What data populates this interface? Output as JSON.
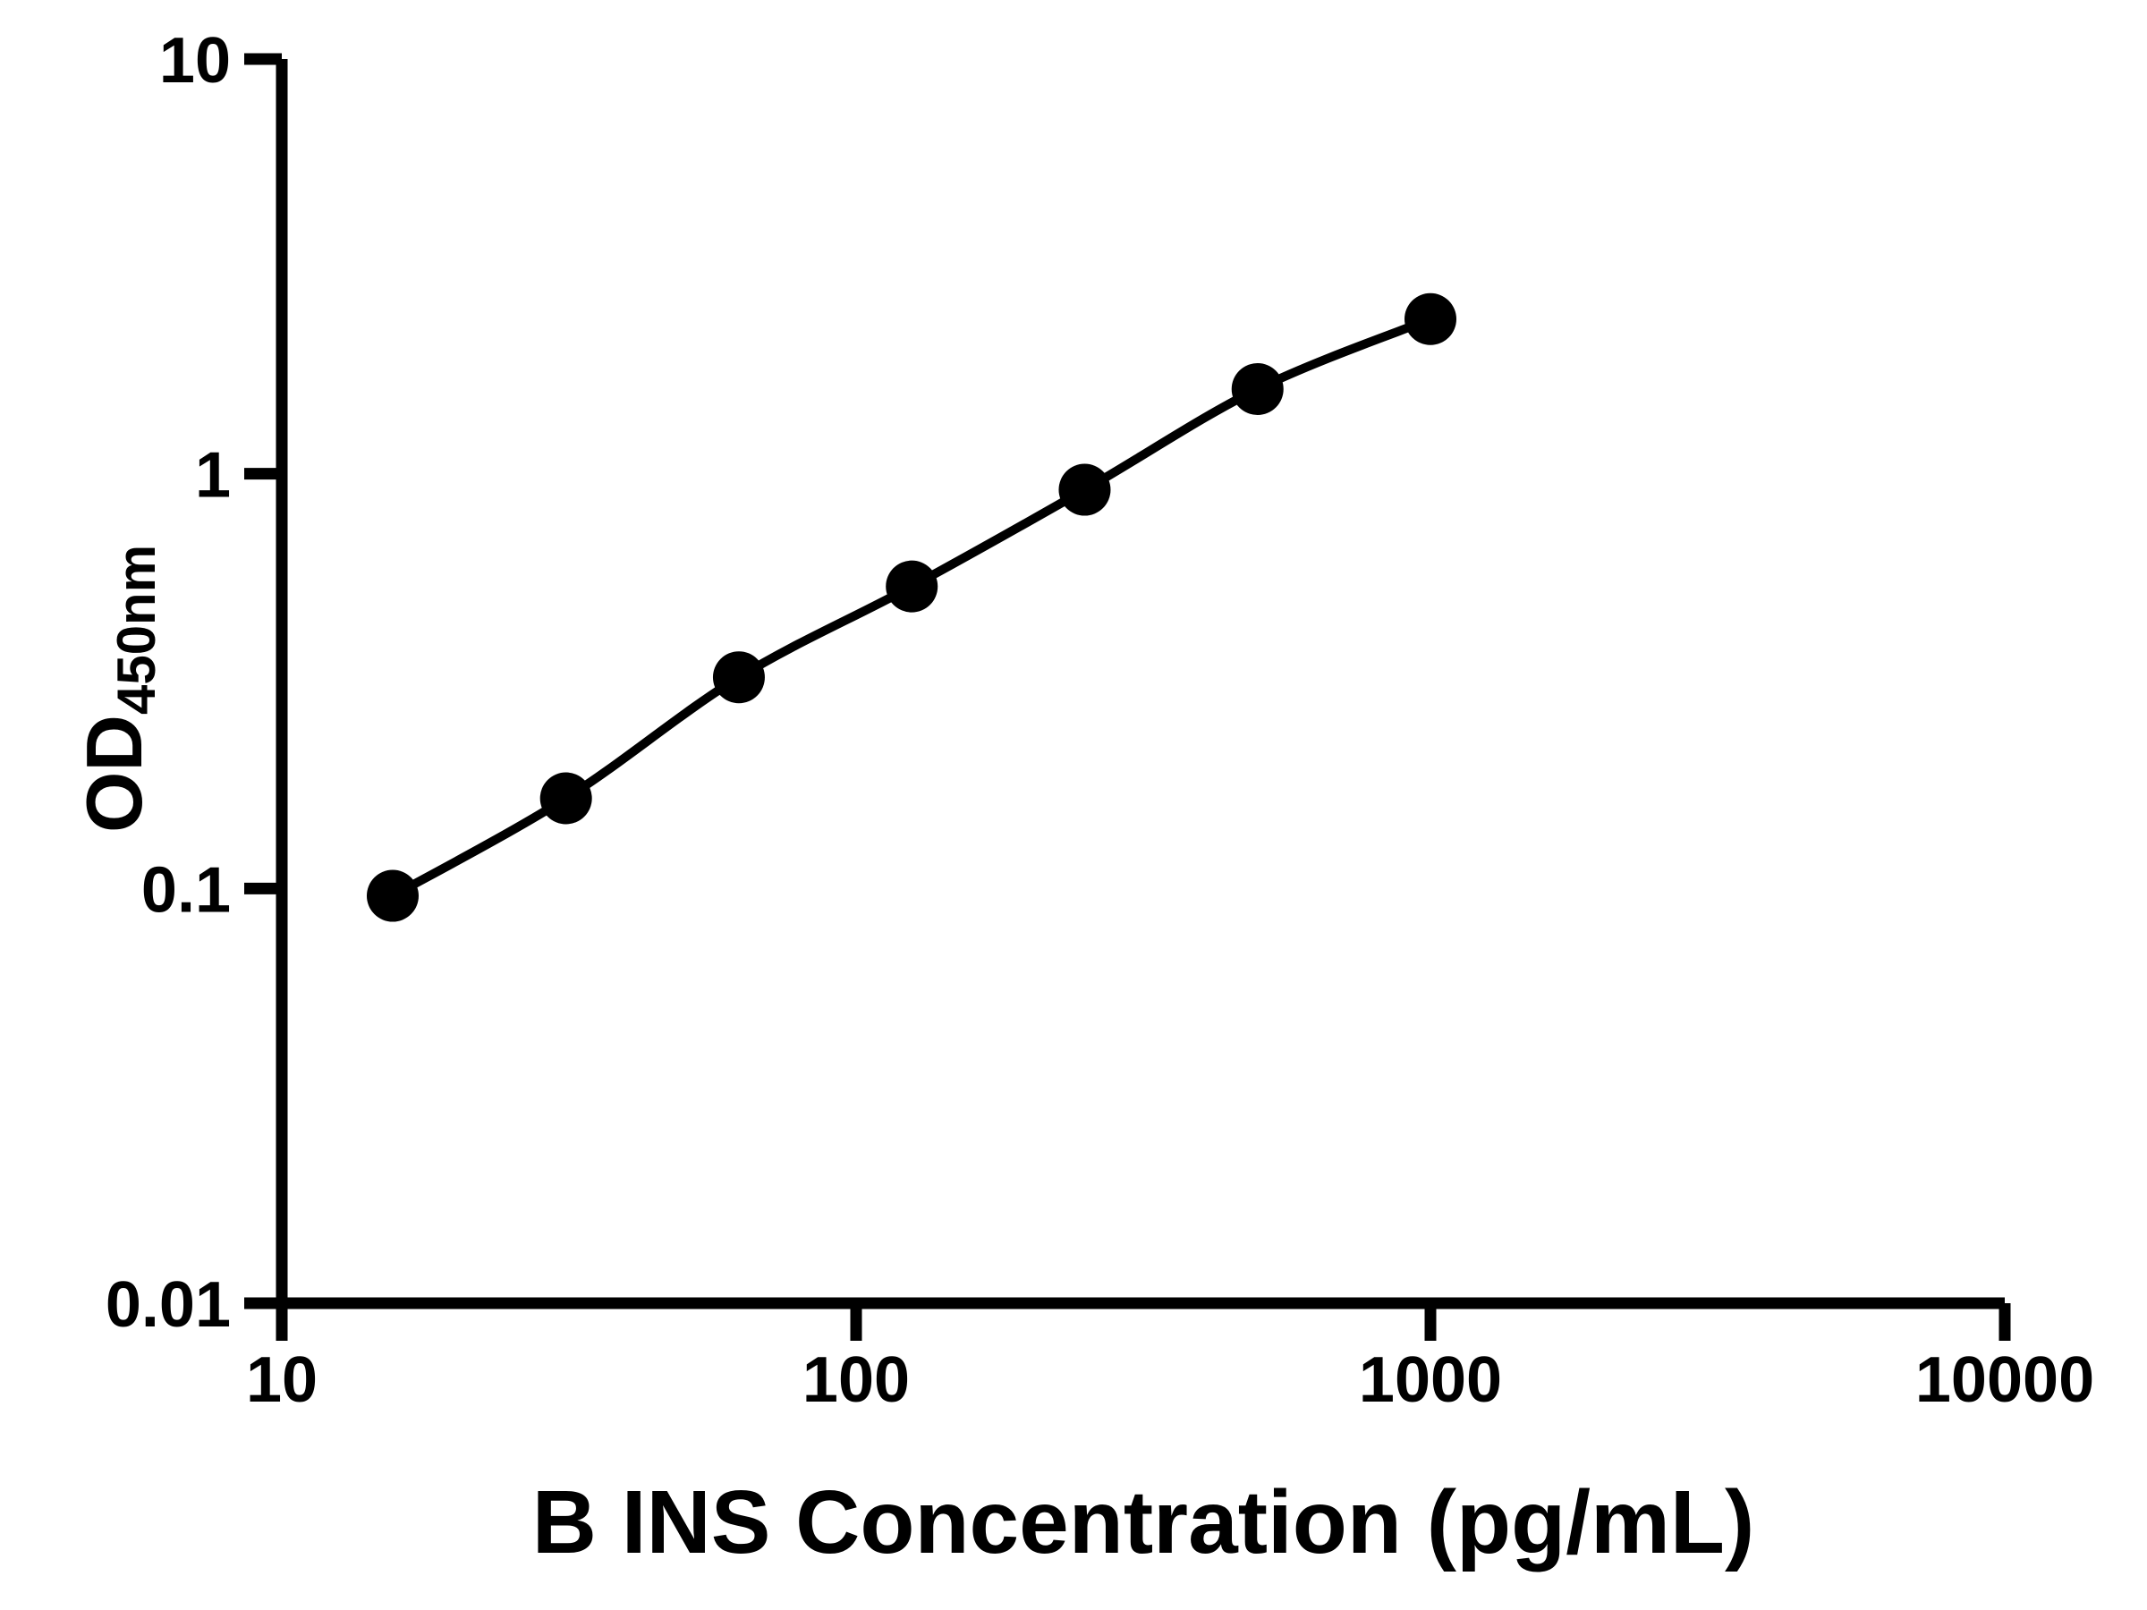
{
  "chart_data": {
    "type": "scatter",
    "curve_style": "smooth line through points",
    "title": "",
    "xlabel": "B INS Concentration (pg/mL)",
    "ylabel": "OD450nm",
    "ylabel_main": "OD",
    "ylabel_sub": "450nm",
    "x": [
      15.6,
      31.25,
      62.5,
      125,
      250,
      500,
      1000
    ],
    "y": [
      0.096,
      0.165,
      0.323,
      0.535,
      0.915,
      1.6,
      2.36
    ],
    "x_scale": "log",
    "y_scale": "log",
    "xlim": [
      10,
      10000
    ],
    "ylim": [
      0.01,
      10
    ],
    "x_ticks": [
      10,
      100,
      1000,
      10000
    ],
    "x_tick_labels": [
      "10",
      "100",
      "1000",
      "10000"
    ],
    "y_ticks": [
      0.01,
      0.1,
      1,
      10
    ],
    "y_tick_labels": [
      "0.01",
      "0.1",
      "1",
      "10"
    ],
    "grid": false,
    "legend": null,
    "colors": {
      "marker": "#000000",
      "line": "#000000",
      "axis": "#000000",
      "background": "#ffffff"
    }
  }
}
